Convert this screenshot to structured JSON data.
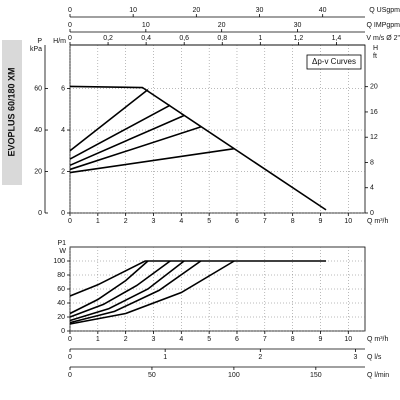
{
  "side_label": "EVOPLUS 60/180 XM",
  "chart_data": [
    {
      "type": "line",
      "xlabel": "Q m³/h",
      "xlim": [
        0,
        10.6
      ],
      "xticks": [
        0,
        1,
        2,
        3,
        4,
        5,
        6,
        7,
        8,
        9,
        10
      ],
      "ylabel": [
        "H/m"
      ],
      "ylim": [
        0,
        8.1
      ],
      "yticks": [
        0,
        2,
        4,
        6
      ],
      "yleft_outer": {
        "label": [
          "P",
          "kPa"
        ],
        "lim": [
          0,
          81
        ],
        "ticks": [
          0,
          20,
          40,
          60
        ]
      },
      "y2label": [
        "H",
        "ft"
      ],
      "y2lim": [
        0,
        26.6
      ],
      "y2ticks": [
        0,
        4,
        8,
        12,
        16,
        20
      ],
      "top_axes": [
        {
          "label": "Q USgpm",
          "lim": [
            0,
            46.7
          ],
          "ticks": [
            0,
            10,
            20,
            30,
            40
          ]
        },
        {
          "label": "Q IMPgpm",
          "lim": [
            0,
            38.9
          ],
          "ticks": [
            0,
            10,
            20,
            30
          ]
        },
        {
          "label": "V m/s Ø 2\"",
          "lim": [
            0,
            1.55
          ],
          "ticks": [
            0,
            {
              "value": 0.2,
              "label": "0,2"
            },
            {
              "value": 0.4,
              "label": "0,4"
            },
            {
              "value": 0.6,
              "label": "0,6"
            },
            {
              "value": 0.8,
              "label": "0,8"
            },
            1,
            {
              "value": 1.2,
              "label": "1,2"
            },
            {
              "value": 1.4,
              "label": "1,4"
            }
          ]
        }
      ],
      "annotation": "Δp-v Curves",
      "grid": true,
      "series": [
        {
          "color": "#000000",
          "x": [
            0,
            2.6,
            9.2
          ],
          "values": [
            6.1,
            6.05,
            0.15
          ]
        },
        {
          "color": "#000000",
          "x": [
            0,
            2.8
          ],
          "values": [
            3.0,
            5.95
          ]
        },
        {
          "color": "#000000",
          "x": [
            0,
            3.6
          ],
          "values": [
            2.6,
            5.2
          ]
        },
        {
          "color": "#000000",
          "x": [
            0,
            4.1
          ],
          "values": [
            2.3,
            4.7
          ]
        },
        {
          "color": "#000000",
          "x": [
            0,
            4.7
          ],
          "values": [
            2.1,
            4.15
          ]
        },
        {
          "color": "#000000",
          "x": [
            0,
            5.9
          ],
          "values": [
            1.95,
            3.1
          ]
        }
      ]
    },
    {
      "type": "line",
      "xlabel": "Q m³/h",
      "xlim": [
        0,
        10.6
      ],
      "xticks": [
        0,
        1,
        2,
        3,
        4,
        5,
        6,
        7,
        8,
        9,
        10
      ],
      "ylabel": [
        "P1",
        "W"
      ],
      "ylim": [
        0,
        120
      ],
      "yticks": [
        0,
        20,
        40,
        60,
        80,
        100
      ],
      "bottom_axes": [
        {
          "label": "Q l/s",
          "lim": [
            0,
            3.1
          ],
          "ticks": [
            0,
            1,
            2,
            3
          ]
        },
        {
          "label": "Q l/min",
          "lim": [
            0,
            180
          ],
          "ticks": [
            0,
            50,
            100,
            150
          ]
        }
      ],
      "grid": true,
      "series": [
        {
          "color": "#000000",
          "x": [
            0,
            1,
            2,
            2.7,
            9.2
          ],
          "values": [
            50,
            66,
            86,
            100,
            100
          ]
        },
        {
          "color": "#000000",
          "x": [
            0,
            1,
            2,
            2.8
          ],
          "values": [
            25,
            45,
            72,
            100
          ]
        },
        {
          "color": "#000000",
          "x": [
            0,
            1.2,
            2.4,
            3.6
          ],
          "values": [
            20,
            38,
            65,
            100
          ]
        },
        {
          "color": "#000000",
          "x": [
            0,
            1.4,
            2.8,
            4.1
          ],
          "values": [
            15,
            32,
            60,
            100
          ]
        },
        {
          "color": "#000000",
          "x": [
            0,
            1.6,
            3.2,
            4.7
          ],
          "values": [
            12,
            28,
            58,
            100
          ]
        },
        {
          "color": "#000000",
          "x": [
            0,
            2,
            4,
            5.9
          ],
          "values": [
            10,
            25,
            55,
            100
          ]
        }
      ]
    }
  ]
}
